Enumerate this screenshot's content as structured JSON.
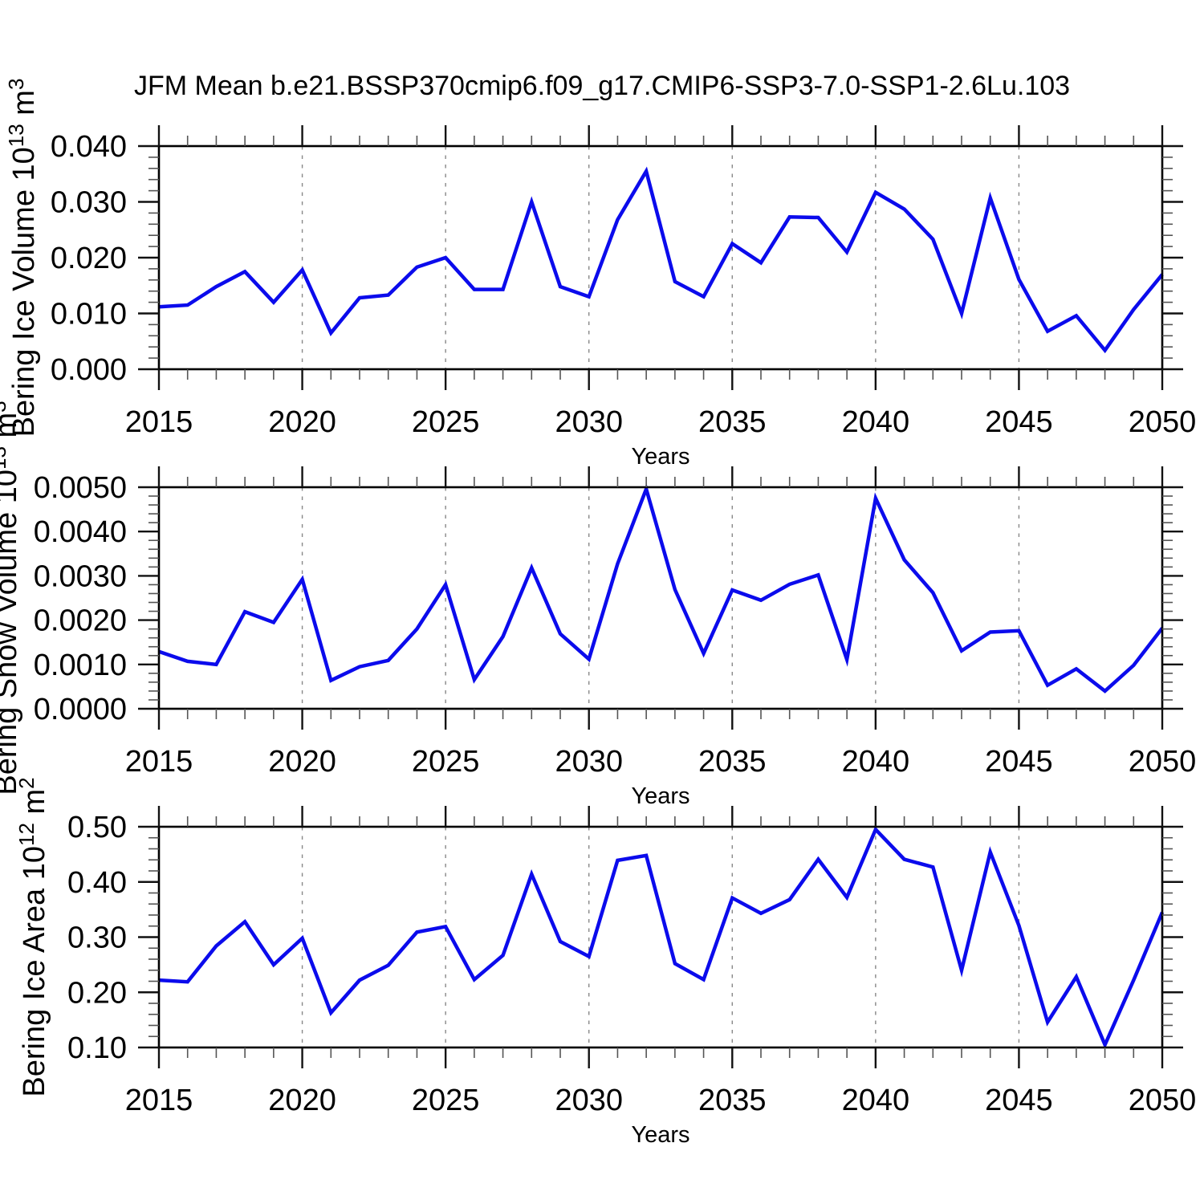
{
  "chart_data": {
    "type": "line",
    "title": "JFM Mean b.e21.BSSP370cmip6.f09_g17.CMIP6-SSP3-7.0-SSP1-2.6Lu.103",
    "xlabel": "Years",
    "x": [
      2015,
      2016,
      2017,
      2018,
      2019,
      2020,
      2021,
      2022,
      2023,
      2024,
      2025,
      2026,
      2027,
      2028,
      2029,
      2030,
      2031,
      2032,
      2033,
      2034,
      2035,
      2036,
      2037,
      2038,
      2039,
      2040,
      2041,
      2042,
      2043,
      2044,
      2045,
      2046,
      2047,
      2048,
      2049,
      2050
    ],
    "x_tick_years": [
      2015,
      2020,
      2025,
      2030,
      2035,
      2040,
      2045,
      2050
    ],
    "x_tick_labels": [
      "2015",
      "2020",
      "2025",
      "2030",
      "2035",
      "2040",
      "2045",
      "2050"
    ],
    "gridline_years": [
      2020,
      2025,
      2030,
      2035,
      2040,
      2045
    ],
    "line_color": "#0b0bec",
    "gridline_color": "#888888",
    "legend": "none",
    "grid": "vertical-dashed",
    "panels": [
      {
        "name": "bering-ice-volume",
        "ylabel_text": "Bering Ice Volume 10^13 m^3",
        "ylabel_segments": [
          {
            "text": "Bering Ice Volume 10"
          },
          {
            "text": "13",
            "sup": true
          },
          {
            "text": " m"
          },
          {
            "text": "3",
            "sup": true
          }
        ],
        "ylim": [
          0.0,
          0.04
        ],
        "yticks": [
          {
            "v": 0.0,
            "label": "0.000"
          },
          {
            "v": 0.01,
            "label": "0.010"
          },
          {
            "v": 0.02,
            "label": "0.020"
          },
          {
            "v": 0.03,
            "label": "0.030"
          },
          {
            "v": 0.04,
            "label": "0.040"
          }
        ],
        "yminor_step": 0.002,
        "values": [
          0.0112,
          0.0115,
          0.0148,
          0.0175,
          0.012,
          0.0178,
          0.0065,
          0.0128,
          0.0133,
          0.0183,
          0.02,
          0.0143,
          0.0143,
          0.03,
          0.0148,
          0.013,
          0.0268,
          0.0355,
          0.0157,
          0.013,
          0.0225,
          0.0191,
          0.0273,
          0.0272,
          0.021,
          0.0317,
          0.0287,
          0.0233,
          0.01,
          0.0307,
          0.0161,
          0.0068,
          0.0096,
          0.0034,
          0.0107,
          0.017
        ]
      },
      {
        "name": "bering-snow-volume",
        "ylabel_text": "Bering Snow Volume 10^13 m^3",
        "ylabel_segments": [
          {
            "text": "Bering Snow Volume 10"
          },
          {
            "text": "13",
            "sup": true
          },
          {
            "text": " m"
          },
          {
            "text": "3",
            "sup": true
          }
        ],
        "ylim": [
          0.0,
          0.005
        ],
        "yticks": [
          {
            "v": 0.0,
            "label": "0.0000"
          },
          {
            "v": 0.001,
            "label": "0.0010"
          },
          {
            "v": 0.002,
            "label": "0.0020"
          },
          {
            "v": 0.003,
            "label": "0.0030"
          },
          {
            "v": 0.004,
            "label": "0.0040"
          },
          {
            "v": 0.005,
            "label": "0.0050"
          }
        ],
        "yminor_step": 0.0002,
        "values": [
          0.00129,
          0.00107,
          0.001,
          0.00219,
          0.00195,
          0.00292,
          0.00064,
          0.00095,
          0.00109,
          0.0018,
          0.0028,
          0.00066,
          0.00163,
          0.00318,
          0.00169,
          0.00112,
          0.00327,
          0.00496,
          0.00269,
          0.00125,
          0.00268,
          0.00245,
          0.00281,
          0.00302,
          0.00111,
          0.00475,
          0.00336,
          0.00262,
          0.00131,
          0.00173,
          0.00176,
          0.00053,
          0.0009,
          0.0004,
          0.00098,
          0.00182
        ]
      },
      {
        "name": "bering-ice-area",
        "ylabel_text": "Bering Ice Area 10^12 m^2",
        "ylabel_segments": [
          {
            "text": "Bering Ice Area 10"
          },
          {
            "text": "12",
            "sup": true
          },
          {
            "text": " m"
          },
          {
            "text": "2",
            "sup": true
          }
        ],
        "ylim": [
          0.1,
          0.5
        ],
        "yticks": [
          {
            "v": 0.1,
            "label": "0.10"
          },
          {
            "v": 0.2,
            "label": "0.20"
          },
          {
            "v": 0.3,
            "label": "0.30"
          },
          {
            "v": 0.4,
            "label": "0.40"
          },
          {
            "v": 0.5,
            "label": "0.50"
          }
        ],
        "yminor_step": 0.02,
        "values": [
          0.222,
          0.219,
          0.284,
          0.328,
          0.25,
          0.298,
          0.163,
          0.222,
          0.249,
          0.309,
          0.319,
          0.223,
          0.267,
          0.414,
          0.292,
          0.265,
          0.439,
          0.448,
          0.252,
          0.223,
          0.371,
          0.343,
          0.368,
          0.441,
          0.372,
          0.495,
          0.441,
          0.427,
          0.24,
          0.454,
          0.321,
          0.146,
          0.228,
          0.105,
          0.222,
          0.345
        ]
      }
    ]
  }
}
